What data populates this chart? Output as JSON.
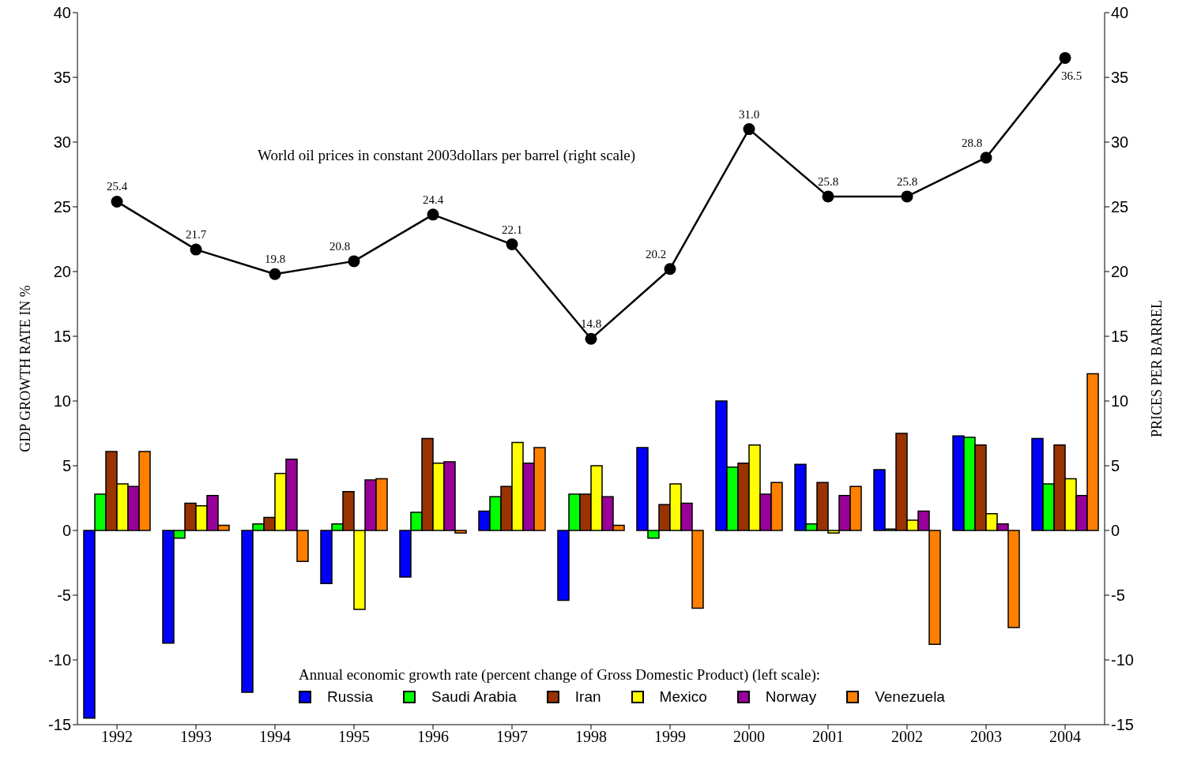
{
  "chart_data": {
    "type": "bar",
    "categories": [
      "1992",
      "1993",
      "1994",
      "1995",
      "1996",
      "1997",
      "1998",
      "1999",
      "2000",
      "2001",
      "2002",
      "2003",
      "2004"
    ],
    "ylabel": "GDP GROWTH RATE IN %",
    "y2label": "PRICES PER BARREL",
    "ylim": [
      -15,
      40
    ],
    "yticks": [
      -15,
      -10,
      -5,
      0,
      5,
      10,
      15,
      20,
      25,
      30,
      35,
      40
    ],
    "y2lim": [
      -15,
      40
    ],
    "y2ticks": [
      -15,
      -10,
      -5,
      0,
      5,
      10,
      15,
      20,
      25,
      30,
      35,
      40
    ],
    "grid": false,
    "legend": "bottom",
    "legend_title": "Annual economic growth rate (percent change of Gross Domestic Product) (left scale):",
    "annotations": [
      "World oil prices in constant 2003dollars per barrel (right scale)"
    ],
    "series": [
      {
        "name": "Russia",
        "color": "#0000ff",
        "values": [
          -14.5,
          -8.7,
          -12.5,
          -4.1,
          -3.6,
          1.5,
          -5.4,
          6.4,
          10.0,
          5.1,
          4.7,
          7.3,
          7.1
        ]
      },
      {
        "name": "Saudi Arabia",
        "color": "#00ff00",
        "values": [
          2.8,
          -0.6,
          0.5,
          0.5,
          1.4,
          2.6,
          2.8,
          -0.6,
          4.9,
          0.5,
          0.1,
          7.2,
          3.6
        ]
      },
      {
        "name": "Iran",
        "color": "#993300",
        "values": [
          6.1,
          2.1,
          1.0,
          3.0,
          7.1,
          3.4,
          2.8,
          2.0,
          5.2,
          3.7,
          7.5,
          6.6,
          6.6
        ]
      },
      {
        "name": "Mexico",
        "color": "#ffff00",
        "values": [
          3.6,
          1.9,
          4.4,
          -6.1,
          5.2,
          6.8,
          5.0,
          3.6,
          6.6,
          -0.2,
          0.8,
          1.3,
          4.0
        ]
      },
      {
        "name": "Norway",
        "color": "#990099",
        "values": [
          3.4,
          2.7,
          5.5,
          3.9,
          5.3,
          5.2,
          2.6,
          2.1,
          2.8,
          2.7,
          1.5,
          0.5,
          2.7
        ]
      },
      {
        "name": "Venezuela",
        "color": "#ff8000",
        "values": [
          6.1,
          0.4,
          -2.4,
          4.0,
          -0.2,
          6.4,
          0.4,
          -6.0,
          3.7,
          3.4,
          -8.8,
          -7.5,
          12.1
        ]
      },
      {
        "type": "line",
        "axis": "y2",
        "color": "#000000",
        "marker": "circle",
        "line_style": "solid",
        "values": [
          25.4,
          21.7,
          19.8,
          20.8,
          24.4,
          22.1,
          14.8,
          20.2,
          31.0,
          25.8,
          25.8,
          28.8,
          36.5
        ],
        "value_labels": [
          "25.4",
          "21.7",
          "19.8",
          "20.8",
          "24.4",
          "22.1",
          "14.8",
          "20.2",
          "31.0",
          "25.8",
          "25.8",
          "28.8",
          "36.5"
        ]
      }
    ]
  }
}
